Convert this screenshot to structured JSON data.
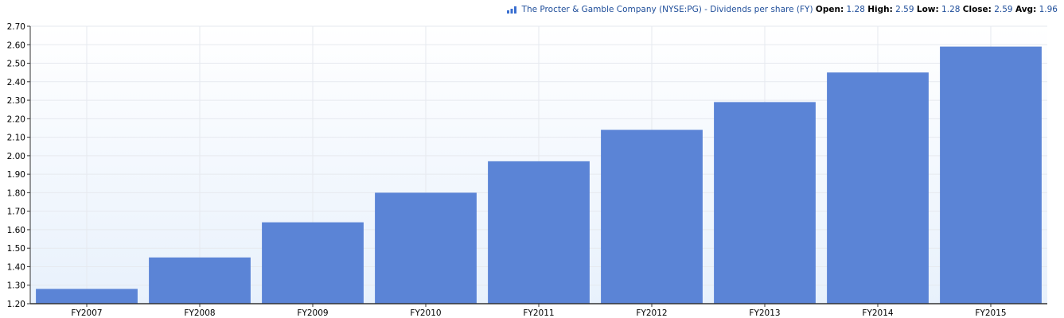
{
  "legend": {
    "series_name": "The Procter & Gamble Company (NYSE:PG) - Dividends per share (FY)",
    "open_label": "Open:",
    "open": "1.28",
    "high_label": "High:",
    "high": "2.59",
    "low_label": "Low:",
    "low": "1.28",
    "close_label": "Close:",
    "close": "2.59",
    "avg_label": "Avg:",
    "avg": "1.96",
    "icon": "bar-chart-icon"
  },
  "chart_data": {
    "type": "bar",
    "categories": [
      "FY2007",
      "FY2008",
      "FY2009",
      "FY2010",
      "FY2011",
      "FY2012",
      "FY2013",
      "FY2014",
      "FY2015"
    ],
    "values": [
      1.28,
      1.45,
      1.64,
      1.8,
      1.97,
      2.14,
      2.29,
      2.45,
      2.59
    ],
    "ylim": [
      1.2,
      2.7
    ],
    "yticks": [
      "1.20",
      "1.30",
      "1.40",
      "1.50",
      "1.60",
      "1.70",
      "1.80",
      "1.90",
      "2.00",
      "2.10",
      "2.20",
      "2.30",
      "2.40",
      "2.50",
      "2.60",
      "2.70"
    ],
    "grid": true,
    "legend_position": "top-right",
    "bar_color": "#5b84d6",
    "background_gradient": [
      "#ffffff",
      "#e8f1fc"
    ]
  }
}
